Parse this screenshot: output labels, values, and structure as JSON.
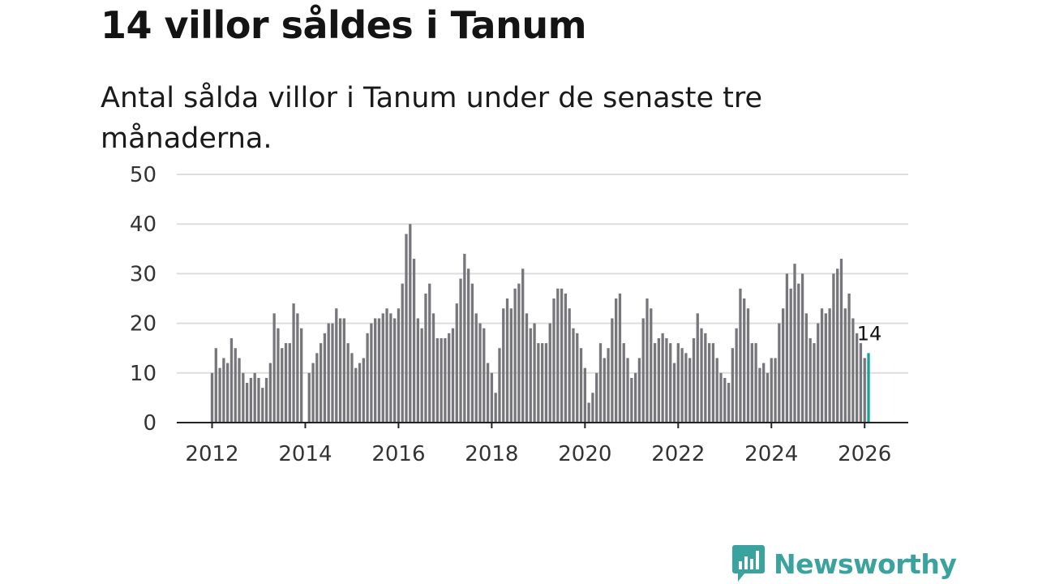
{
  "colors": {
    "bar": "#77767b",
    "highlight": "#16a395",
    "grid": "#dddddd",
    "axis": "#222222",
    "brand": "#3aa39e"
  },
  "brand": {
    "name": "Newsworthy",
    "icon": "bar-chart-speech-bubble-icon"
  },
  "chart_data": {
    "type": "bar",
    "title": "14 villor såldes i Tanum",
    "subtitle": "Antal sålda villor i Tanum under de senaste tre månaderna.",
    "xlabel": "",
    "ylabel": "",
    "ylim": [
      0,
      50
    ],
    "yticks": [
      0,
      10,
      20,
      30,
      40,
      50
    ],
    "xticks": [
      "2012",
      "2014",
      "2016",
      "2018",
      "2020",
      "2022",
      "2024",
      "2026"
    ],
    "start": "2012-01",
    "interval": "month",
    "grid": true,
    "highlight_label": "14",
    "values": [
      10,
      15,
      11,
      13,
      12,
      17,
      15,
      13,
      10,
      8,
      9,
      10,
      9,
      7,
      9,
      12,
      22,
      19,
      15,
      16,
      16,
      24,
      22,
      19,
      0,
      10,
      12,
      14,
      16,
      18,
      20,
      20,
      23,
      21,
      21,
      16,
      14,
      11,
      12,
      13,
      18,
      20,
      21,
      21,
      22,
      23,
      22,
      21,
      23,
      28,
      38,
      40,
      33,
      21,
      19,
      26,
      28,
      22,
      17,
      17,
      17,
      18,
      19,
      24,
      29,
      34,
      31,
      28,
      22,
      20,
      19,
      12,
      10,
      6,
      15,
      23,
      25,
      23,
      27,
      28,
      31,
      22,
      19,
      20,
      16,
      16,
      16,
      20,
      25,
      27,
      27,
      26,
      23,
      19,
      18,
      15,
      11,
      4,
      6,
      10,
      16,
      13,
      15,
      21,
      25,
      26,
      16,
      13,
      9,
      10,
      13,
      21,
      25,
      23,
      16,
      17,
      18,
      17,
      16,
      12,
      16,
      15,
      14,
      13,
      17,
      22,
      19,
      18,
      16,
      16,
      13,
      10,
      9,
      8,
      15,
      19,
      27,
      25,
      23,
      16,
      16,
      11,
      12,
      10,
      13,
      13,
      20,
      23,
      30,
      27,
      32,
      28,
      30,
      22,
      17,
      16,
      20,
      23,
      22,
      23,
      30,
      31,
      33,
      23,
      26,
      21,
      18,
      16,
      13,
      14
    ]
  }
}
